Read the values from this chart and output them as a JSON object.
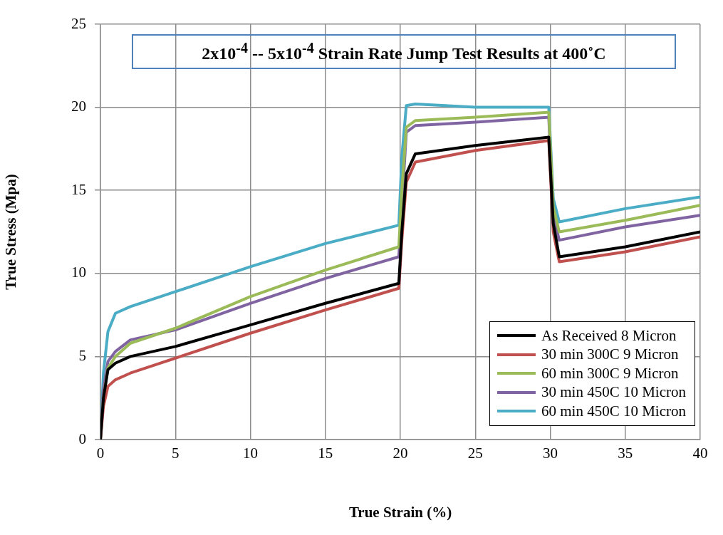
{
  "chart_data": {
    "type": "line",
    "title": "2x10$^{-4}$ -- 5x10$^{-4}$ Strain Rate Jump Test Results at 400˚C",
    "xlabel": "True Strain (%)",
    "ylabel": "True Stress (Mpa)",
    "x": [
      0,
      0.2,
      0.5,
      1,
      2,
      5,
      10,
      15,
      19.9,
      20.1,
      20.4,
      21,
      25,
      29.9,
      30.2,
      30.6,
      35,
      40
    ],
    "series": [
      {
        "name": "As Received 8 Micron",
        "color": "#000000",
        "values": [
          0,
          2.5,
          4.2,
          4.6,
          5.0,
          5.6,
          6.9,
          8.2,
          9.4,
          12.5,
          16,
          17.2,
          17.7,
          18.2,
          13,
          11,
          11.6,
          12.5
        ]
      },
      {
        "name": "30 min 300C 9 Micron",
        "color": "#c0504d",
        "values": [
          0,
          2,
          3.2,
          3.6,
          4.0,
          4.9,
          6.4,
          7.8,
          9.1,
          12,
          15.5,
          16.7,
          17.4,
          18.0,
          12.5,
          10.7,
          11.3,
          12.2
        ]
      },
      {
        "name": "60 min 300C 9 Micron",
        "color": "#9bbb59",
        "values": [
          0,
          2.5,
          4.3,
          5.0,
          5.8,
          6.7,
          8.6,
          10.2,
          11.6,
          15,
          18.8,
          19.2,
          19.4,
          19.7,
          14,
          12.5,
          13.2,
          14.1
        ]
      },
      {
        "name": "30 min 450C 10 Micron",
        "color": "#8064a2",
        "values": [
          0,
          3,
          4.7,
          5.3,
          6,
          6.6,
          8.2,
          9.7,
          11.0,
          14,
          18.5,
          18.9,
          19.1,
          19.4,
          13.5,
          12.0,
          12.8,
          13.5
        ]
      },
      {
        "name": "60 min 450C 10 Micron",
        "color": "#4bacc6",
        "values": [
          0,
          4,
          6.5,
          7.6,
          8.0,
          8.9,
          10.4,
          11.8,
          12.9,
          17,
          20.1,
          20.2,
          20.0,
          20.0,
          14.5,
          13.1,
          13.9,
          14.6
        ]
      }
    ],
    "xlim": [
      0,
      40
    ],
    "xticks": [
      0,
      5,
      10,
      15,
      20,
      25,
      30,
      35,
      40
    ],
    "ylim": [
      0,
      25
    ],
    "yticks": [
      0,
      5,
      10,
      15,
      20,
      25
    ],
    "grid": true,
    "legend": "bottom right",
    "marker": "none",
    "line_style": "solid"
  }
}
